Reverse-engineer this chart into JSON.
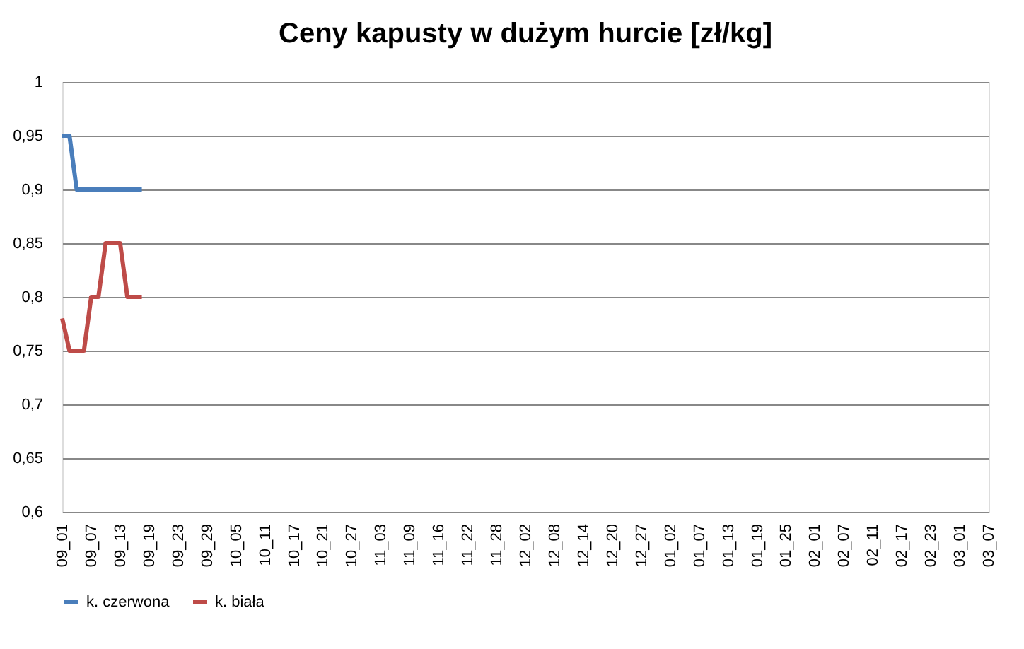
{
  "chart_data": {
    "type": "line",
    "title": "Ceny kapusty w dużym hurcie [zł/kg]",
    "categories": [
      "09_01",
      null,
      null,
      null,
      "09_07",
      null,
      null,
      null,
      "09_13",
      null,
      null,
      null,
      "09_19",
      null,
      null,
      null,
      "09_23",
      null,
      null,
      null,
      "09_29",
      null,
      null,
      null,
      "10_05",
      null,
      null,
      null,
      "10_11",
      null,
      null,
      null,
      "10_17",
      null,
      null,
      null,
      "10_21",
      null,
      null,
      null,
      "10_27",
      null,
      null,
      null,
      "11_03",
      null,
      null,
      null,
      "11_09",
      null,
      null,
      null,
      "11_16",
      null,
      null,
      null,
      "11_22",
      null,
      null,
      null,
      "11_28",
      null,
      null,
      null,
      "12_02",
      null,
      null,
      null,
      "12_08",
      null,
      null,
      null,
      "12_14",
      null,
      null,
      null,
      "12_20",
      null,
      null,
      null,
      "12_27",
      null,
      null,
      null,
      "01_02",
      null,
      null,
      null,
      "01_07",
      null,
      null,
      null,
      "01_13",
      null,
      null,
      null,
      "01_19",
      null,
      null,
      null,
      "01_25",
      null,
      null,
      null,
      "02_01",
      null,
      null,
      null,
      "02_07",
      null,
      null,
      null,
      "02_11",
      null,
      null,
      null,
      "02_17",
      null,
      null,
      null,
      "02_23",
      null,
      null,
      null,
      "03_01",
      null,
      null,
      null,
      "03_07"
    ],
    "series": [
      {
        "name": "k. czerwona",
        "color": "#4a7ebb",
        "values": [
          0.95,
          0.95,
          0.9,
          0.9,
          0.9,
          0.9,
          0.9,
          0.9,
          0.9,
          0.9,
          0.9,
          0.9,
          null,
          null,
          null,
          null,
          null,
          null,
          null,
          null,
          null,
          null,
          null,
          null,
          null,
          null,
          null,
          null,
          null,
          null,
          null,
          null,
          null,
          null,
          null,
          null,
          null,
          null,
          null,
          null,
          null,
          null,
          null,
          null,
          null,
          null,
          null,
          null,
          null,
          null,
          null,
          null,
          null,
          null,
          null,
          null,
          null,
          null,
          null,
          null,
          null,
          null,
          null,
          null,
          null,
          null,
          null,
          null,
          null,
          null,
          null,
          null,
          null,
          null,
          null,
          null,
          null,
          null,
          null,
          null,
          null,
          null,
          null,
          null,
          null,
          null,
          null,
          null,
          null,
          null,
          null,
          null,
          null,
          null,
          null,
          null,
          null,
          null,
          null,
          null,
          null,
          null,
          null,
          null,
          null,
          null,
          null,
          null,
          null,
          null,
          null,
          null,
          null,
          null,
          null,
          null,
          null,
          null,
          null,
          null,
          null,
          null,
          null,
          null,
          null,
          null,
          null,
          null,
          null
        ]
      },
      {
        "name": "k. biała",
        "color": "#be4b48",
        "values": [
          0.78,
          0.75,
          0.75,
          0.75,
          0.8,
          0.8,
          0.85,
          0.85,
          0.85,
          0.8,
          0.8,
          0.8,
          null,
          null,
          null,
          null,
          null,
          null,
          null,
          null,
          null,
          null,
          null,
          null,
          null,
          null,
          null,
          null,
          null,
          null,
          null,
          null,
          null,
          null,
          null,
          null,
          null,
          null,
          null,
          null,
          null,
          null,
          null,
          null,
          null,
          null,
          null,
          null,
          null,
          null,
          null,
          null,
          null,
          null,
          null,
          null,
          null,
          null,
          null,
          null,
          null,
          null,
          null,
          null,
          null,
          null,
          null,
          null,
          null,
          null,
          null,
          null,
          null,
          null,
          null,
          null,
          null,
          null,
          null,
          null,
          null,
          null,
          null,
          null,
          null,
          null,
          null,
          null,
          null,
          null,
          null,
          null,
          null,
          null,
          null,
          null,
          null,
          null,
          null,
          null,
          null,
          null,
          null,
          null,
          null,
          null,
          null,
          null,
          null,
          null,
          null,
          null,
          null,
          null,
          null,
          null,
          null,
          null,
          null,
          null,
          null,
          null,
          null,
          null,
          null,
          null,
          null,
          null,
          null
        ]
      }
    ],
    "ylim": [
      0.6,
      1
    ],
    "yticks": [
      {
        "value": 0.6,
        "label": "0,6"
      },
      {
        "value": 0.65,
        "label": "0,65"
      },
      {
        "value": 0.7,
        "label": "0,7"
      },
      {
        "value": 0.75,
        "label": "0,75"
      },
      {
        "value": 0.8,
        "label": "0,8"
      },
      {
        "value": 0.85,
        "label": "0,85"
      },
      {
        "value": 0.9,
        "label": "0,9"
      },
      {
        "value": 0.95,
        "label": "0,95"
      },
      {
        "value": 1,
        "label": "1"
      }
    ],
    "grid": "y",
    "legend": "bottom",
    "marker": "none",
    "line_style": "solid"
  }
}
